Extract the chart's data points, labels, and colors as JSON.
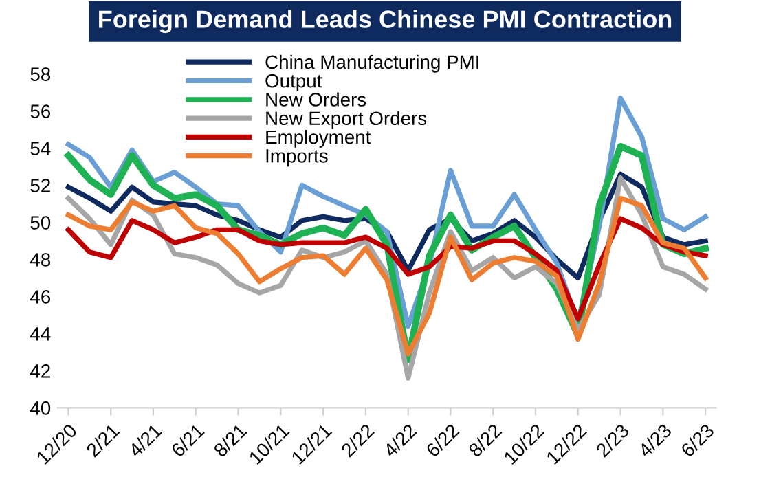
{
  "chart_data": {
    "type": "line",
    "title": "Foreign Demand Leads Chinese PMI Contraction",
    "categories": [
      "12/20",
      null,
      "2/21",
      null,
      "4/21",
      null,
      "6/21",
      null,
      "8/21",
      null,
      "10/21",
      null,
      "12/21",
      null,
      "2/22",
      null,
      "4/22",
      null,
      "6/22",
      null,
      "8/22",
      null,
      "10/22",
      null,
      "12/22",
      null,
      "2/23",
      null,
      "4/23",
      null,
      "6/23"
    ],
    "series": [
      {
        "name": "China Manufacturing PMI",
        "color": "#0e2a5e",
        "values": [
          51.9,
          51.3,
          50.6,
          51.9,
          51.1,
          51.0,
          50.9,
          50.4,
          50.1,
          49.6,
          49.2,
          50.1,
          50.3,
          50.1,
          50.2,
          49.5,
          47.4,
          49.6,
          50.2,
          49.0,
          49.4,
          50.1,
          49.2,
          48.0,
          47.0,
          50.1,
          52.6,
          51.9,
          49.2,
          48.8,
          49.0
        ]
      },
      {
        "name": "Output",
        "color": "#6a9fd6",
        "values": [
          54.2,
          53.5,
          51.9,
          53.9,
          52.2,
          52.7,
          51.9,
          51.0,
          50.9,
          49.5,
          48.4,
          52.0,
          51.4,
          50.9,
          50.4,
          49.5,
          44.4,
          47.7,
          52.8,
          49.8,
          49.8,
          51.5,
          49.6,
          47.8,
          44.6,
          49.8,
          56.7,
          54.6,
          50.2,
          49.6,
          50.3
        ]
      },
      {
        "name": "New Orders",
        "color": "#1fb254",
        "values": [
          53.6,
          52.3,
          51.5,
          53.6,
          52.0,
          51.3,
          51.5,
          50.9,
          49.6,
          49.3,
          48.8,
          49.4,
          49.7,
          49.3,
          50.7,
          48.8,
          42.6,
          48.2,
          50.4,
          48.5,
          49.2,
          49.8,
          48.1,
          46.4,
          43.9,
          50.9,
          54.1,
          53.6,
          48.8,
          48.3,
          48.6
        ]
      },
      {
        "name": "New Export Orders",
        "color": "#a6a6a6",
        "values": [
          51.3,
          50.2,
          48.8,
          51.2,
          50.4,
          48.3,
          48.1,
          47.7,
          46.7,
          46.2,
          46.6,
          48.5,
          48.1,
          48.4,
          49.0,
          47.2,
          41.6,
          46.2,
          49.5,
          47.4,
          48.1,
          47.0,
          47.6,
          46.7,
          44.2,
          46.1,
          52.4,
          50.4,
          47.6,
          47.2,
          46.4
        ]
      },
      {
        "name": "Employment",
        "color": "#c00000",
        "values": [
          49.6,
          48.4,
          48.1,
          50.1,
          49.6,
          48.9,
          49.2,
          49.6,
          49.6,
          49.0,
          48.8,
          48.9,
          48.9,
          48.9,
          49.2,
          48.6,
          47.2,
          47.6,
          48.7,
          48.6,
          49.0,
          49.0,
          48.3,
          47.4,
          44.8,
          47.7,
          50.2,
          49.7,
          48.8,
          48.4,
          48.2
        ]
      },
      {
        "name": "Imports",
        "color": "#ed7d31",
        "values": [
          50.4,
          49.8,
          49.6,
          51.1,
          50.6,
          50.9,
          49.7,
          49.4,
          48.3,
          46.8,
          47.5,
          48.1,
          48.2,
          47.2,
          48.6,
          46.9,
          42.9,
          45.1,
          49.2,
          46.9,
          47.8,
          48.1,
          47.9,
          47.1,
          43.7,
          46.7,
          51.3,
          50.9,
          48.9,
          48.6,
          47.0
        ]
      }
    ],
    "ylim": [
      40,
      58
    ],
    "yticks": [
      40,
      42,
      44,
      46,
      48,
      50,
      52,
      54,
      56,
      58
    ],
    "grid": false,
    "legend": "top",
    "line_style": "solid",
    "marker": "none"
  }
}
